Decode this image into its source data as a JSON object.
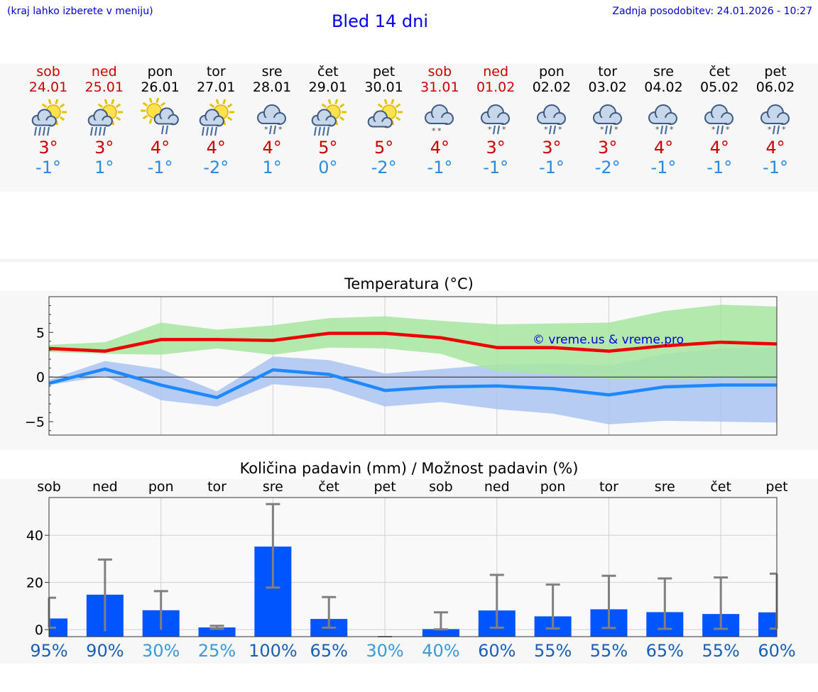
{
  "header": {
    "hint": "(kraj lahko izberete v meniju)",
    "title": "Bled 14 dni",
    "updated": "Zadnja posodobitev: 24.01.2026 - 10:27"
  },
  "days": [
    {
      "name": "sob",
      "date": "24.01",
      "weekend": true,
      "icon": "sun-cloud-rain-icon",
      "max": "3°",
      "min": "-1°"
    },
    {
      "name": "ned",
      "date": "25.01",
      "weekend": true,
      "icon": "sun-cloud-rain-icon",
      "max": "3°",
      "min": "1°"
    },
    {
      "name": "pon",
      "date": "26.01",
      "weekend": false,
      "icon": "sun-cloud-shower-icon",
      "max": "4°",
      "min": "-1°"
    },
    {
      "name": "tor",
      "date": "27.01",
      "weekend": false,
      "icon": "sun-cloud-rain-icon",
      "max": "4°",
      "min": "-2°"
    },
    {
      "name": "sre",
      "date": "28.01",
      "weekend": false,
      "icon": "cloud-sleet-icon",
      "max": "4°",
      "min": "1°"
    },
    {
      "name": "čet",
      "date": "29.01",
      "weekend": false,
      "icon": "sun-cloud-rain-icon",
      "max": "5°",
      "min": "0°"
    },
    {
      "name": "pet",
      "date": "30.01",
      "weekend": false,
      "icon": "sun-cloud-icon",
      "max": "5°",
      "min": "-2°"
    },
    {
      "name": "sob",
      "date": "31.01",
      "weekend": true,
      "icon": "cloud-snow-icon",
      "max": "4°",
      "min": "-1°"
    },
    {
      "name": "ned",
      "date": "01.02",
      "weekend": true,
      "icon": "cloud-sleet-icon",
      "max": "3°",
      "min": "-1°"
    },
    {
      "name": "pon",
      "date": "02.02",
      "weekend": false,
      "icon": "cloud-sleet-icon",
      "max": "3°",
      "min": "-1°"
    },
    {
      "name": "tor",
      "date": "03.02",
      "weekend": false,
      "icon": "cloud-sleet-icon",
      "max": "3°",
      "min": "-2°"
    },
    {
      "name": "sre",
      "date": "04.02",
      "weekend": false,
      "icon": "cloud-sleet-icon",
      "max": "4°",
      "min": "-1°"
    },
    {
      "name": "čet",
      "date": "05.02",
      "weekend": false,
      "icon": "cloud-sleet-icon",
      "max": "4°",
      "min": "-1°"
    },
    {
      "name": "pet",
      "date": "06.02",
      "weekend": false,
      "icon": "cloud-sleet-icon",
      "max": "4°",
      "min": "-1°"
    }
  ],
  "colors": {
    "max_line": "#ee0000",
    "min_line": "#1e88ff",
    "max_band": "#a8e6a0",
    "min_band": "#aac4f2",
    "bar": "#0055ff",
    "err": "#808080",
    "pct_dark": "#1a5fb4",
    "pct_light": "#3a9ad9",
    "weekend": "#cc0000"
  },
  "chart_data": [
    {
      "type": "line",
      "title": "Temperatura (°C)",
      "watermark": "© vreme.us & vreme.pro",
      "ylim": [
        -6.5,
        9
      ],
      "yticks": [
        -5,
        0,
        5
      ],
      "ytick_labels": [
        "−5",
        "0",
        "5"
      ],
      "x": [
        0,
        1,
        2,
        3,
        4,
        5,
        6,
        7,
        8,
        9,
        10,
        11,
        12,
        13
      ],
      "series": [
        {
          "name": "max",
          "values": [
            3.2,
            2.9,
            4.2,
            4.2,
            4.1,
            4.9,
            4.9,
            4.4,
            3.3,
            3.3,
            2.9,
            3.5,
            3.9,
            3.7
          ],
          "band_low": [
            2.8,
            2.6,
            2.5,
            3.2,
            2.5,
            3.3,
            3.2,
            2.6,
            0.6,
            0.3,
            -0.2,
            -0.3,
            -0.1,
            -0.3
          ],
          "band_high": [
            3.6,
            3.9,
            6.1,
            5.3,
            5.8,
            6.6,
            6.8,
            6.3,
            5.9,
            6.0,
            6.1,
            7.4,
            8.1,
            7.9
          ]
        },
        {
          "name": "min",
          "values": [
            -0.7,
            0.9,
            -0.9,
            -2.3,
            0.8,
            0.3,
            -1.5,
            -1.1,
            -1.0,
            -1.3,
            -2.0,
            -1.1,
            -0.9,
            -0.9
          ],
          "band_low": [
            -0.9,
            0.1,
            -2.6,
            -3.3,
            -0.8,
            -1.3,
            -3.3,
            -2.8,
            -3.6,
            -4.1,
            -5.3,
            -4.9,
            -5.0,
            -5.1
          ],
          "band_high": [
            -0.3,
            1.8,
            0.9,
            -1.6,
            2.3,
            1.9,
            0.4,
            0.9,
            1.4,
            1.5,
            1.3,
            2.6,
            3.2,
            3.3
          ]
        }
      ]
    },
    {
      "type": "bar",
      "title": "Količina padavin (mm) / Možnost padavin (%)",
      "categories": [
        "sob",
        "ned",
        "pon",
        "tor",
        "sre",
        "čet",
        "pet",
        "sob",
        "ned",
        "pon",
        "tor",
        "sre",
        "čet",
        "pet"
      ],
      "ylim": [
        -3,
        56
      ],
      "yticks": [
        0,
        20,
        40
      ],
      "values": [
        4.7,
        14.8,
        8.2,
        0.9,
        35.2,
        4.5,
        0,
        0.2,
        8.1,
        5.6,
        8.6,
        7.4,
        6.6,
        7.3
      ],
      "err_low": [
        0.8,
        -0.7,
        -0.1,
        0.3,
        17.8,
        0.8,
        0,
        0.1,
        0.8,
        0.5,
        0.7,
        0.3,
        0.3,
        0.4
      ],
      "err_high": [
        13.5,
        29.7,
        16.3,
        1.6,
        53.2,
        13.8,
        0,
        7.3,
        23.2,
        19.1,
        22.8,
        21.7,
        22.1,
        23.7
      ],
      "probability": [
        "95%",
        "90%",
        "30%",
        "25%",
        "100%",
        "65%",
        "30%",
        "40%",
        "60%",
        "55%",
        "55%",
        "65%",
        "55%",
        "60%"
      ],
      "probability_values": [
        95,
        90,
        30,
        25,
        100,
        65,
        30,
        40,
        60,
        55,
        55,
        65,
        55,
        60
      ]
    }
  ]
}
